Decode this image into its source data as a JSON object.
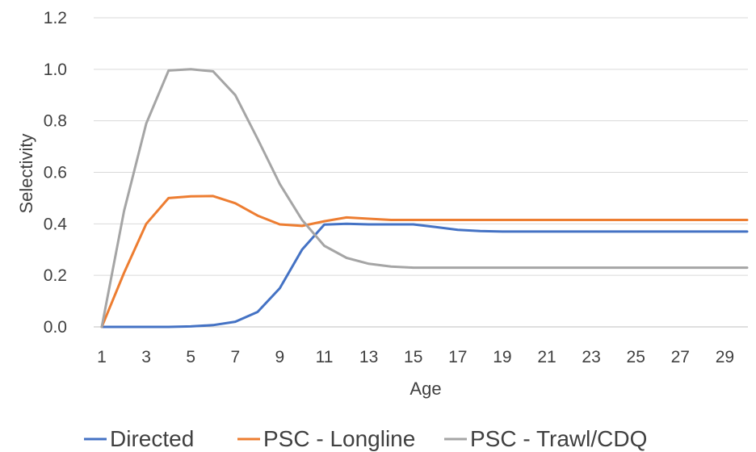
{
  "chart_data": {
    "type": "line",
    "xlabel": "Age",
    "ylabel": "Selectivity",
    "x_tick_labels": [
      "1",
      "3",
      "5",
      "7",
      "9",
      "11",
      "13",
      "15",
      "17",
      "19",
      "21",
      "23",
      "25",
      "27",
      "29"
    ],
    "y_tick_labels": [
      "0.0",
      "0.2",
      "0.4",
      "0.6",
      "0.8",
      "1.0",
      "1.2"
    ],
    "xlim": [
      1,
      30
    ],
    "ylim": [
      0,
      1.2
    ],
    "grid": "horizontal",
    "legend_position": "bottom",
    "x": [
      1,
      2,
      3,
      4,
      5,
      6,
      7,
      8,
      9,
      10,
      11,
      12,
      13,
      14,
      15,
      16,
      17,
      18,
      19,
      20,
      21,
      22,
      23,
      24,
      25,
      26,
      27,
      28,
      29,
      30
    ],
    "series": [
      {
        "name": "Directed",
        "color": "#4472c4",
        "values": [
          0,
          0,
          0,
          0,
          0.002,
          0.007,
          0.02,
          0.058,
          0.15,
          0.3,
          0.397,
          0.4,
          0.398,
          0.398,
          0.398,
          0.388,
          0.377,
          0.372,
          0.37,
          0.37,
          0.37,
          0.37,
          0.37,
          0.37,
          0.37,
          0.37,
          0.37,
          0.37,
          0.37,
          0.37
        ]
      },
      {
        "name": "PSC - Longline",
        "color": "#ed7d31",
        "values": [
          0,
          0.21,
          0.4,
          0.5,
          0.507,
          0.508,
          0.48,
          0.432,
          0.398,
          0.392,
          0.41,
          0.425,
          0.42,
          0.415,
          0.415,
          0.415,
          0.415,
          0.415,
          0.415,
          0.415,
          0.415,
          0.415,
          0.415,
          0.415,
          0.415,
          0.415,
          0.415,
          0.415,
          0.415,
          0.415
        ]
      },
      {
        "name": "PSC - Trawl/CDQ",
        "color": "#a5a5a5",
        "values": [
          0,
          0.45,
          0.79,
          0.995,
          1.0,
          0.992,
          0.9,
          0.73,
          0.555,
          0.415,
          0.315,
          0.268,
          0.245,
          0.234,
          0.23,
          0.23,
          0.23,
          0.23,
          0.23,
          0.23,
          0.23,
          0.23,
          0.23,
          0.23,
          0.23,
          0.23,
          0.23,
          0.23,
          0.23,
          0.23
        ]
      }
    ]
  }
}
